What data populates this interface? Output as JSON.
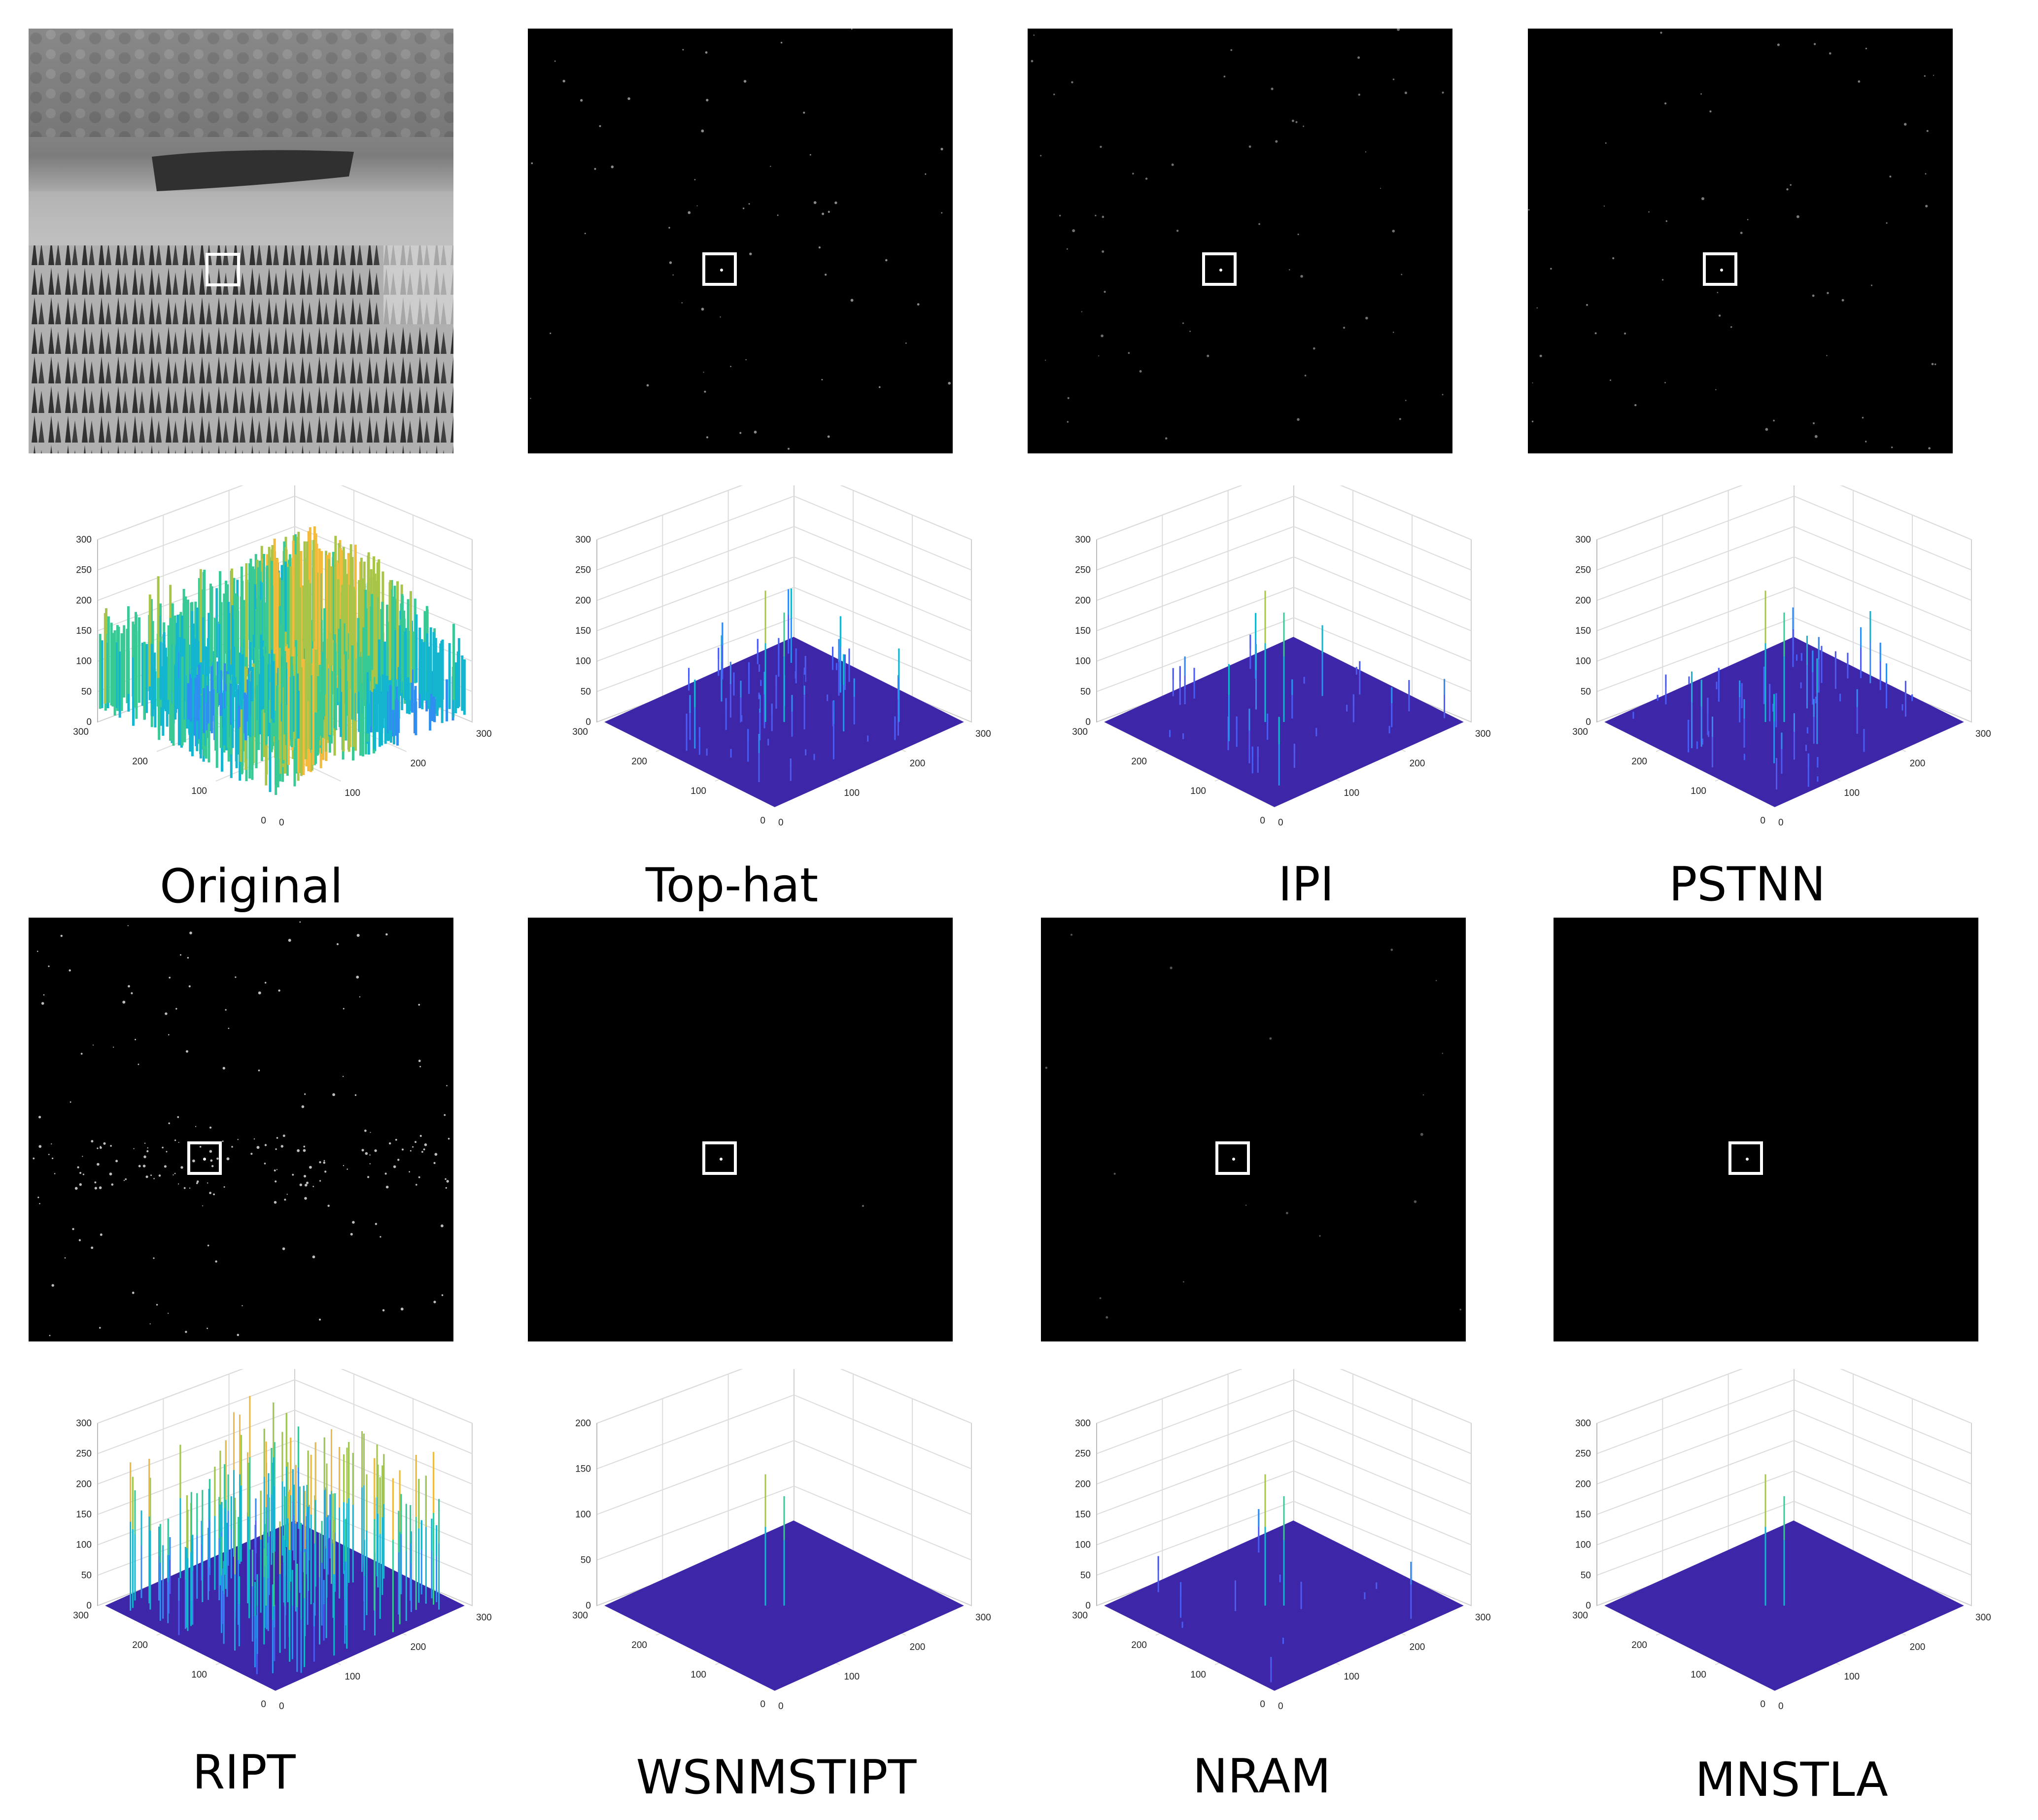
{
  "figure": {
    "methods": [
      {
        "id": "original",
        "caption": "Original",
        "zmax": 300,
        "zticks": [
          "0",
          "50",
          "100",
          "150",
          "200",
          "250",
          "300"
        ],
        "kind": "dense-surface"
      },
      {
        "id": "tophat",
        "caption": "Top-hat",
        "zmax": 300,
        "zticks": [
          "0",
          "50",
          "100",
          "150",
          "200",
          "250",
          "300"
        ],
        "kind": "many-spikes"
      },
      {
        "id": "ipi",
        "caption": "IPI",
        "zmax": 300,
        "zticks": [
          "0",
          "50",
          "100",
          "150",
          "200",
          "250",
          "300"
        ],
        "kind": "some-spikes"
      },
      {
        "id": "pstnn",
        "caption": "PSTNN",
        "zmax": 300,
        "zticks": [
          "0",
          "50",
          "100",
          "150",
          "200",
          "250",
          "300"
        ],
        "kind": "many-spikes"
      },
      {
        "id": "ript",
        "caption": "RIPT",
        "zmax": 300,
        "zticks": [
          "0",
          "50",
          "100",
          "150",
          "200",
          "250",
          "300"
        ],
        "kind": "dense-spikes"
      },
      {
        "id": "wsnmstipt",
        "caption": "WSNMSTIPT",
        "zmax": 200,
        "zticks": [
          "0",
          "50",
          "100",
          "150",
          "200"
        ],
        "kind": "single-spike"
      },
      {
        "id": "nram",
        "caption": "NRAM",
        "zmax": 300,
        "zticks": [
          "0",
          "50",
          "100",
          "150",
          "200",
          "250",
          "300"
        ],
        "kind": "few-spikes"
      },
      {
        "id": "mnstla",
        "caption": "MNSTLA",
        "zmax": 300,
        "zticks": [
          "0",
          "50",
          "100",
          "150",
          "200",
          "250",
          "300"
        ],
        "kind": "single-spike"
      }
    ],
    "axis": {
      "left_ticks": [
        "0",
        "100",
        "200",
        "300"
      ],
      "right_ticks": [
        "0",
        "100",
        "200",
        "300"
      ]
    },
    "colors": {
      "surface_base": "#3e26a8",
      "box": "#ffffff",
      "colormap": [
        "#3e26a8",
        "#4a5cf3",
        "#2f8eef",
        "#14b6cf",
        "#38c995",
        "#a8c549",
        "#f4ba3c",
        "#f9e022"
      ]
    }
  }
}
